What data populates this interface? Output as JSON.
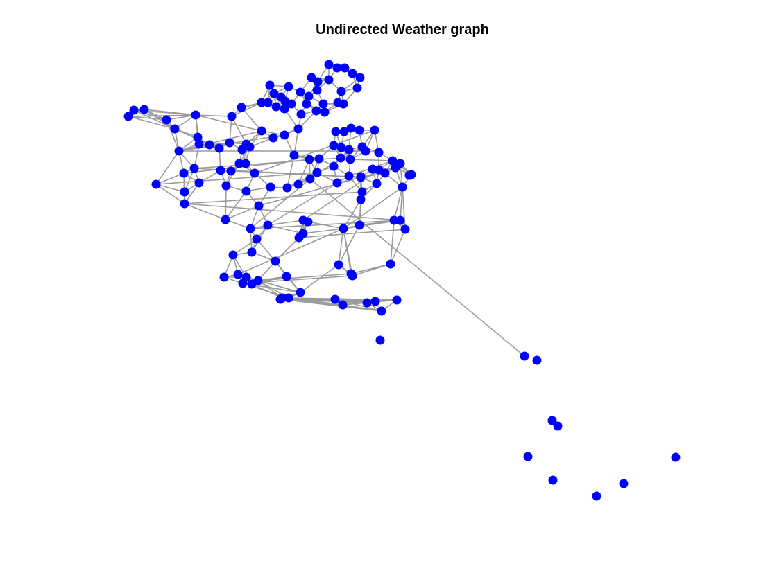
{
  "figure": {
    "title": "Undirected Weather graph"
  },
  "colors": {
    "node": "#0000ff",
    "edge": "#9b9b9b",
    "background": "#ffffff"
  }
}
